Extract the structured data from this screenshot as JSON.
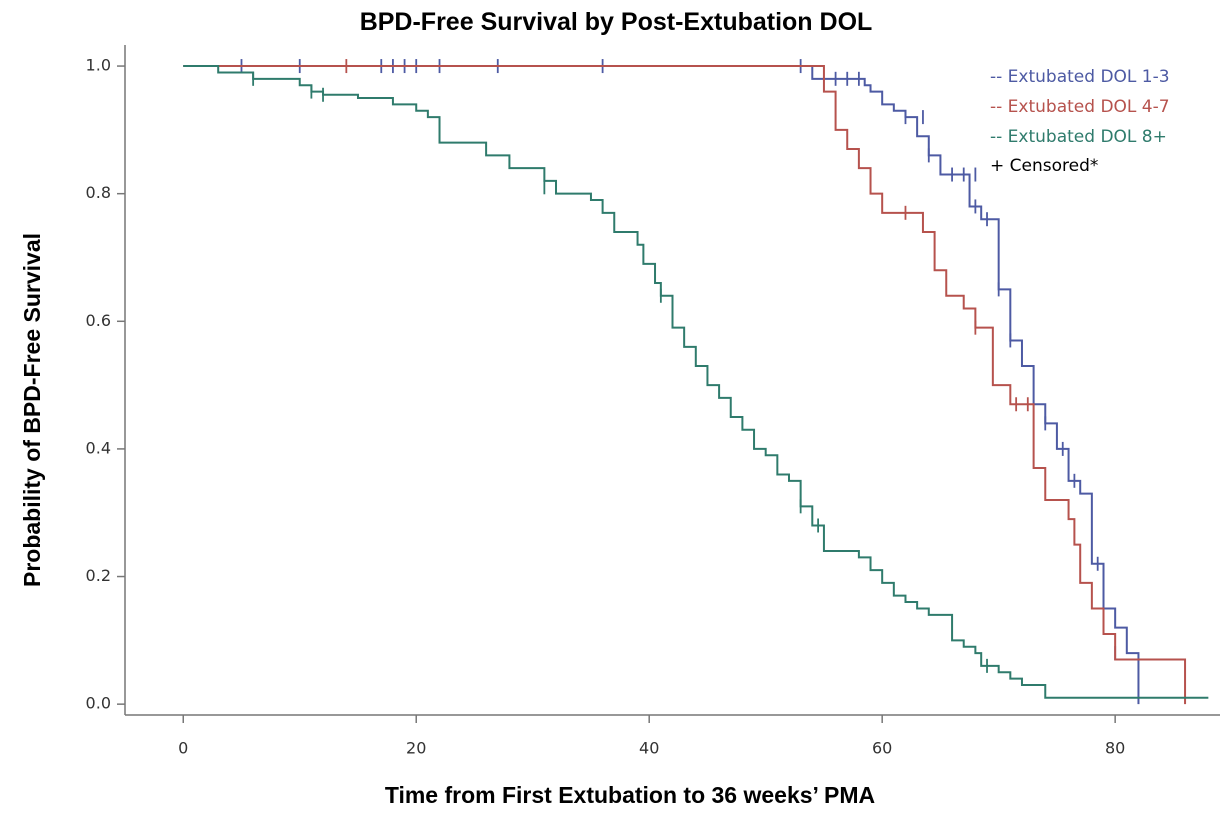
{
  "chart_data": {
    "type": "km",
    "title": "BPD-Free Survival by Post-Extubation DOL",
    "x_label": "Time from First Extubation to 36 weeks’ PMA",
    "y_label": "Probability of BPD-Free Survival",
    "censored_label": "+ Censored*",
    "xlim": [
      -5,
      89
    ],
    "ylim": [
      -0.017,
      1.033
    ],
    "xticks": [
      0,
      20,
      40,
      60,
      80
    ],
    "yticks": [
      {
        "value": 0,
        "label": "0.0"
      },
      {
        "value": 0.2,
        "label": "0.2"
      },
      {
        "value": 0.4,
        "label": "0.4"
      },
      {
        "value": 0.6,
        "label": "0.6"
      },
      {
        "value": 0.8,
        "label": "0.8"
      },
      {
        "value": 1,
        "label": "1.0"
      }
    ],
    "series": [
      {
        "name": "-- Extubated DOL 1-3",
        "color": "#4d5aa3",
        "x": [
          0,
          54,
          58.5,
          59,
          60,
          61,
          62,
          63,
          64,
          65,
          67.5,
          68.5,
          70,
          71,
          72,
          73,
          74,
          75,
          76,
          77,
          78,
          79,
          80,
          81,
          82
        ],
        "values": [
          1,
          0.98,
          0.97,
          0.96,
          0.94,
          0.93,
          0.92,
          0.89,
          0.86,
          0.83,
          0.78,
          0.76,
          0.65,
          0.57,
          0.53,
          0.47,
          0.44,
          0.4,
          0.35,
          0.33,
          0.22,
          0.15,
          0.12,
          0.08,
          0
        ],
        "censor_x": [
          5,
          10,
          17,
          18,
          19,
          20,
          22,
          27,
          36,
          53,
          56,
          57,
          58,
          62,
          63.5,
          64,
          66,
          67,
          68,
          68,
          69,
          70,
          71,
          74,
          75.5,
          76.5,
          78.5,
          80
        ],
        "censor_values": [
          1,
          1,
          1,
          1,
          1,
          1,
          1,
          1,
          1,
          1,
          0.98,
          0.98,
          0.98,
          0.92,
          0.92,
          0.86,
          0.83,
          0.83,
          0.83,
          0.78,
          0.76,
          0.65,
          0.57,
          0.44,
          0.4,
          0.35,
          0.22,
          0.08
        ]
      },
      {
        "name": "-- Extubated DOL 4-7",
        "color": "#b6524d",
        "x": [
          0,
          55,
          56,
          57,
          58,
          59,
          60,
          63.5,
          64.5,
          65.5,
          67,
          68,
          69.5,
          71,
          73,
          74,
          76,
          76.5,
          77,
          78,
          79,
          80,
          86
        ],
        "values": [
          1,
          0.96,
          0.9,
          0.87,
          0.84,
          0.8,
          0.77,
          0.74,
          0.68,
          0.64,
          0.62,
          0.59,
          0.5,
          0.47,
          0.37,
          0.32,
          0.29,
          0.25,
          0.19,
          0.15,
          0.11,
          0.07,
          0
        ],
        "censor_x": [
          14,
          62,
          68,
          71.5,
          72.5
        ],
        "censor_values": [
          1,
          0.77,
          0.59,
          0.47,
          0.47
        ]
      },
      {
        "name": "-- Extubated DOL 8+",
        "color": "#2f7b6c",
        "x": [
          0,
          3,
          6,
          10,
          11,
          12,
          15,
          18,
          20,
          21,
          22,
          26,
          28,
          31,
          32,
          35,
          36,
          37,
          39,
          39.5,
          40.5,
          41,
          42,
          43,
          44,
          45,
          46,
          47,
          48,
          49,
          50,
          51,
          52,
          53,
          54,
          55,
          58,
          59,
          60,
          61,
          62,
          63,
          64,
          66,
          67,
          68,
          68.5,
          70,
          71,
          72,
          74,
          88
        ],
        "values": [
          1,
          0.99,
          0.98,
          0.97,
          0.96,
          0.955,
          0.95,
          0.94,
          0.93,
          0.92,
          0.88,
          0.86,
          0.84,
          0.82,
          0.8,
          0.79,
          0.77,
          0.74,
          0.72,
          0.69,
          0.66,
          0.64,
          0.59,
          0.56,
          0.53,
          0.5,
          0.48,
          0.45,
          0.43,
          0.4,
          0.39,
          0.36,
          0.35,
          0.31,
          0.28,
          0.24,
          0.23,
          0.21,
          0.19,
          0.17,
          0.16,
          0.15,
          0.14,
          0.1,
          0.09,
          0.08,
          0.06,
          0.05,
          0.04,
          0.03,
          0.01,
          0.01
        ],
        "censor_x": [
          6,
          11,
          12,
          31,
          41,
          53,
          54.5,
          69
        ],
        "censor_values": [
          0.98,
          0.96,
          0.955,
          0.81,
          0.64,
          0.31,
          0.28,
          0.06
        ]
      }
    ]
  }
}
